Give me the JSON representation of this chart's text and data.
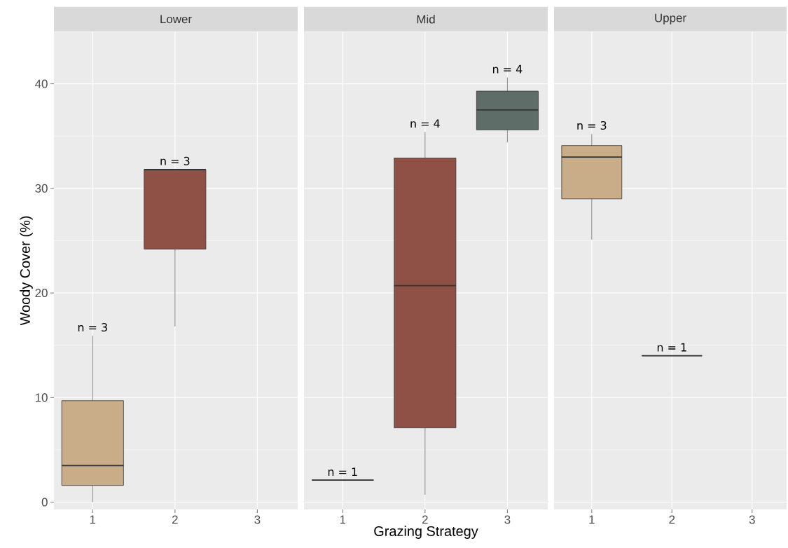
{
  "chart_data": [
    {
      "type": "box",
      "title": "Lower",
      "ylabel": "Woody Cover (%)",
      "categories": [
        "1",
        "2",
        "3"
      ],
      "boxes": [
        {
          "low": 0,
          "q1": 1.6,
          "median": 3.5,
          "q3": 9.7,
          "high": 15.9
        },
        {
          "low": 16.8,
          "q1": 24.2,
          "median": 31.8,
          "q3": 31.8,
          "high": 31.8
        },
        null
      ],
      "colors": [
        "#c8ad88",
        "#8f5146",
        null
      ],
      "ylim": [
        -0.7,
        45
      ],
      "yticks": [
        0,
        10,
        20,
        30,
        40
      ],
      "grid": true,
      "annotations": [
        "n = 3",
        "n = 3"
      ]
    },
    {
      "type": "box",
      "title": "Mid",
      "xlabel": "Grazing Strategy",
      "categories": [
        "1",
        "2",
        "3"
      ],
      "boxes": [
        {
          "low": 2.1,
          "q1": 2.1,
          "median": 2.1,
          "q3": 2.1,
          "high": 2.1
        },
        {
          "low": 0.7,
          "q1": 7.1,
          "median": 20.7,
          "q3": 32.9,
          "high": 35.4
        },
        {
          "low": 34.4,
          "q1": 35.6,
          "median": 37.5,
          "q3": 39.3,
          "high": 40.6
        }
      ],
      "colors": [
        "#333333",
        "#8f5146",
        "#5f6d68"
      ],
      "ylim": [
        -0.7,
        45
      ],
      "yticks": [
        0,
        10,
        20,
        30,
        40
      ],
      "grid": true,
      "tick_labels": "x",
      "annotations": [
        "n = 1",
        "n = 4",
        "n = 4"
      ]
    },
    {
      "type": "box",
      "title": "Upper",
      "categories": [
        "1",
        "2",
        "3"
      ],
      "boxes": [
        {
          "low": 25.1,
          "q1": 29.0,
          "median": 33.0,
          "q3": 34.1,
          "high": 35.2
        },
        {
          "low": 14.0,
          "q1": 14.0,
          "median": 14.0,
          "q3": 14.0,
          "high": 14.0
        },
        null
      ],
      "colors": [
        "#c8ad88",
        "#333333",
        null
      ],
      "ylim": [
        -0.7,
        45
      ],
      "yticks": [
        0,
        10,
        20,
        30,
        40
      ],
      "grid": true,
      "tick_labels": "x",
      "annotations": [
        "n = 3",
        "n = 1"
      ]
    }
  ]
}
